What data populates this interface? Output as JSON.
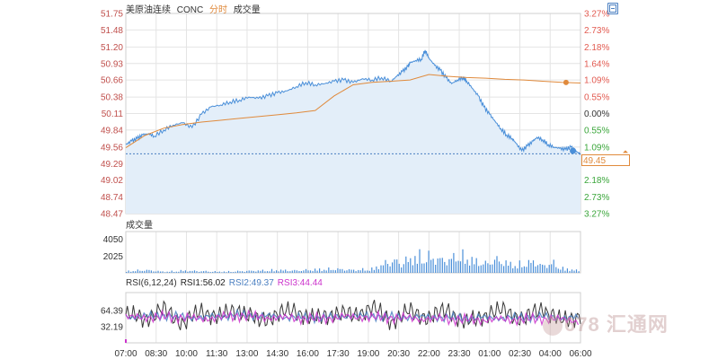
{
  "header": {
    "symbol_name": "美原油连续",
    "symbol_code": "CONC",
    "mode_label": "分时",
    "volume_tab": "成交量"
  },
  "price_axis": {
    "ticks": [
      "51.75",
      "51.48",
      "51.20",
      "50.93",
      "50.66",
      "50.38",
      "50.11",
      "49.84",
      "49.56",
      "49.29",
      "49.02",
      "48.74",
      "48.47"
    ],
    "pct_ticks": [
      "3.27%",
      "2.73%",
      "2.18%",
      "1.64%",
      "1.09%",
      "0.55%",
      "0.00%",
      "0.55%",
      "1.09%",
      "2.18%",
      "2.73%",
      "3.27%"
    ],
    "pct_tick_values": [
      51.75,
      51.48,
      51.2,
      50.93,
      50.66,
      50.38,
      50.11,
      49.84,
      49.56,
      49.02,
      48.74,
      48.47
    ],
    "pct_up_color": "#e25a50",
    "pct_down_color": "#3aa63a",
    "pct_flat_color": "#333333"
  },
  "current_price": {
    "label": "49.45"
  },
  "volume_panel": {
    "title": "成交量",
    "ticks": [
      "4050",
      "2025"
    ],
    "tick_values": [
      4050,
      2025
    ]
  },
  "rsi_panel": {
    "legend_params": "RSI(6,12,24)",
    "rsi1_label": "RSI1:56.02",
    "rsi2_label": "RSI2:49.37",
    "rsi3_label": "RSI3:44.44",
    "rsi1_color": "#222222",
    "rsi2_color": "#4a7fc1",
    "rsi3_color": "#cc33cc",
    "ticks": [
      "64.39",
      "32.19"
    ],
    "tick_values": [
      64.39,
      32.19
    ]
  },
  "time_axis": {
    "labels": [
      "07:00",
      "08:30",
      "10:00",
      "11:30",
      "13:00",
      "14:30",
      "16:00",
      "17:30",
      "19:00",
      "20:30",
      "22:00",
      "23:30",
      "01:00",
      "02:30",
      "04:00",
      "06:00"
    ]
  },
  "watermark": {
    "text": "678 汇通网"
  },
  "colors": {
    "price_line": "#4a8fd9",
    "price_fill": "#e3eef9",
    "avg_line": "#e08a3c",
    "volume_bar": "#4a8fd9",
    "grid": "#e4e4e4",
    "axis_text": "#333333"
  },
  "chart_data": [
    {
      "type": "area",
      "name": "price",
      "x_labels": [
        "07:00",
        "08:30",
        "10:00",
        "11:30",
        "13:00",
        "14:30",
        "16:00",
        "17:30",
        "19:00",
        "20:30",
        "22:00",
        "23:30",
        "01:00",
        "02:30",
        "04:00",
        "06:00"
      ],
      "x": [
        0,
        0.3,
        0.6,
        0.9,
        1.2,
        1.5,
        2,
        2.5,
        3,
        3.5,
        4,
        4.5,
        5,
        5.5,
        6,
        6.5,
        7,
        7.5,
        8,
        8.5,
        9,
        9.5,
        10,
        10.5,
        11,
        11.5,
        12,
        12.5,
        13,
        13.5,
        14,
        14.3,
        14.6,
        14.9,
        15,
        15.3,
        15.6,
        15.8,
        16,
        16.3,
        16.6,
        16.9,
        17.2,
        17.5,
        17.8,
        18,
        18.3,
        18.6,
        18.9,
        19.2,
        19.5,
        19.8,
        20.1,
        20.4,
        20.6,
        20.9,
        21.2,
        21.5,
        21.7,
        22,
        22.3,
        22.6,
        22.9,
        23.2,
        23.5,
        23.8,
        24
      ],
      "values": [
        49.6,
        49.66,
        49.7,
        49.76,
        49.78,
        49.74,
        49.84,
        49.92,
        49.96,
        49.88,
        50.1,
        50.22,
        50.25,
        50.3,
        50.33,
        50.38,
        50.36,
        50.4,
        50.45,
        50.48,
        50.55,
        50.62,
        50.58,
        50.6,
        50.64,
        50.66,
        50.62,
        50.68,
        50.66,
        50.7,
        50.64,
        50.72,
        50.8,
        50.88,
        50.94,
        50.98,
        51.0,
        51.15,
        51.02,
        50.9,
        50.82,
        50.7,
        50.6,
        50.66,
        50.7,
        50.64,
        50.52,
        50.4,
        50.22,
        50.1,
        49.98,
        49.86,
        49.76,
        49.7,
        49.62,
        49.5,
        49.58,
        49.66,
        49.72,
        49.68,
        49.6,
        49.56,
        49.54,
        49.52,
        49.56,
        49.48,
        49.45
      ],
      "ylim": [
        48.47,
        51.75
      ]
    },
    {
      "type": "line",
      "name": "average",
      "x": [
        0,
        1,
        2,
        3,
        4,
        5,
        6,
        7,
        8,
        9,
        10,
        11,
        12,
        13,
        14,
        15,
        16,
        17,
        18,
        19,
        20,
        21,
        22,
        23,
        24
      ],
      "values": [
        49.55,
        49.75,
        49.87,
        49.93,
        49.97,
        50.0,
        50.03,
        50.06,
        50.09,
        50.12,
        50.16,
        50.4,
        50.58,
        50.62,
        50.64,
        50.66,
        50.75,
        50.72,
        50.7,
        50.69,
        50.67,
        50.66,
        50.64,
        50.62,
        50.61
      ],
      "ylim": [
        48.47,
        51.75
      ]
    },
    {
      "type": "bar",
      "name": "volume",
      "x": [
        0,
        1,
        2,
        3,
        4,
        5,
        6,
        7,
        8,
        9,
        10,
        11,
        12,
        13,
        14,
        14.5,
        15,
        15.5,
        16,
        16.5,
        17,
        17.5,
        18,
        18.5,
        19,
        19.5,
        20,
        20.5,
        21,
        21.5,
        22,
        22.5,
        23,
        23.5,
        24
      ],
      "values": [
        300,
        500,
        200,
        400,
        300,
        200,
        300,
        400,
        500,
        400,
        600,
        700,
        500,
        700,
        2200,
        1800,
        2500,
        3000,
        2800,
        2400,
        2200,
        3200,
        2600,
        2000,
        1600,
        2400,
        1800,
        1400,
        1600,
        2000,
        1200,
        1800,
        800,
        600,
        300
      ],
      "ylim": [
        0,
        5000
      ]
    },
    {
      "type": "line",
      "name": "RSI",
      "series": [
        {
          "name": "RSI1",
          "x": [
            0,
            1,
            2,
            3,
            4,
            5,
            6,
            7,
            8,
            9,
            10,
            11,
            12,
            13,
            14,
            15,
            16,
            17,
            18,
            19,
            20,
            21,
            22,
            23,
            24
          ],
          "values": [
            56,
            48,
            66,
            40,
            62,
            52,
            68,
            42,
            58,
            64,
            46,
            60,
            54,
            70,
            44,
            62,
            50,
            66,
            38,
            58,
            64,
            46,
            70,
            42,
            56.02
          ]
        },
        {
          "name": "RSI2",
          "x": [
            0,
            2,
            4,
            6,
            8,
            10,
            12,
            14,
            16,
            18,
            20,
            22,
            24
          ],
          "values": [
            52,
            54,
            50,
            56,
            52,
            50,
            54,
            52,
            51,
            50,
            50,
            52,
            49.37
          ]
        },
        {
          "name": "RSI3",
          "x": [
            0,
            2,
            4,
            6,
            8,
            10,
            12,
            14,
            16,
            18,
            20,
            22,
            24
          ],
          "values": [
            50,
            52,
            48,
            54,
            50,
            48,
            52,
            50,
            48,
            46,
            46,
            48,
            44.44
          ]
        }
      ],
      "ylim": [
        0,
        100
      ]
    }
  ]
}
